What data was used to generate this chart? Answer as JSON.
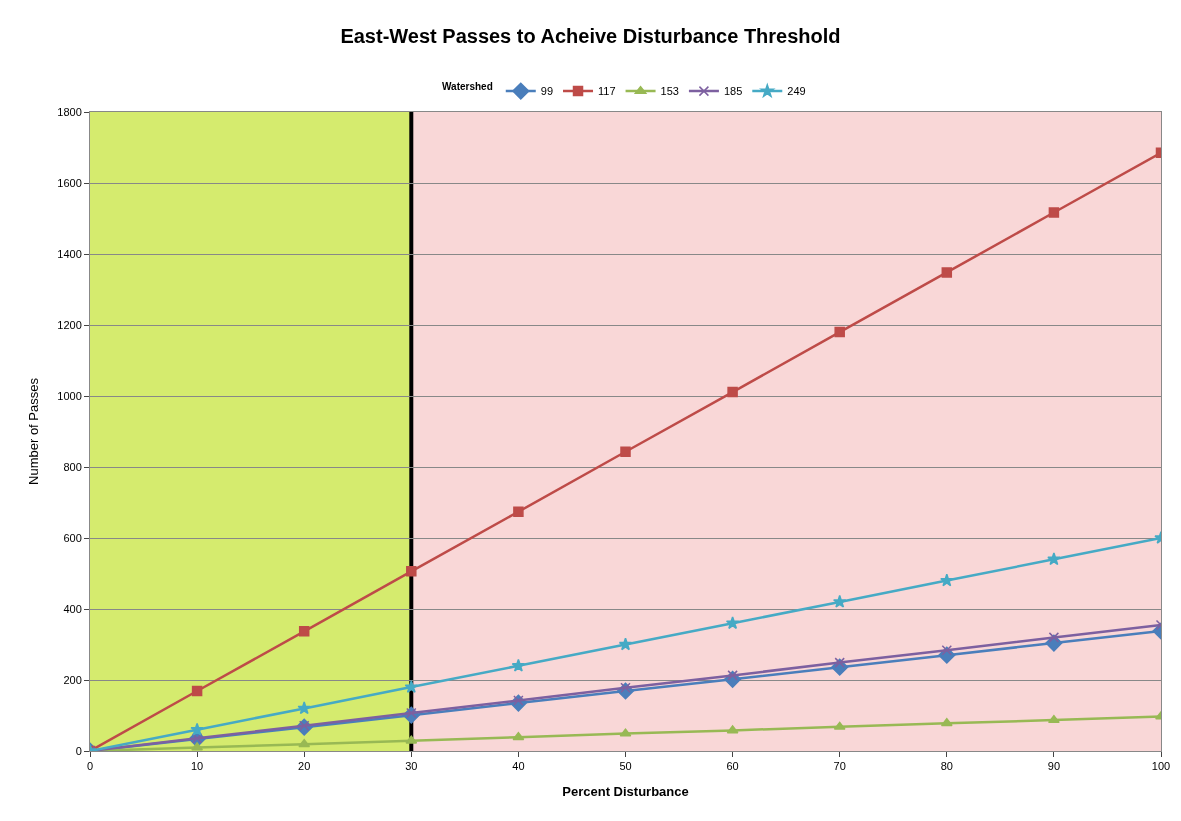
{
  "chart_data": {
    "type": "line",
    "title": "East-West Passes to Acheive Disturbance Threshold",
    "xlabel": "Percent Disturbance",
    "ylabel": "Number of Passes",
    "legend_title": "Watershed",
    "legend": "top",
    "x": [
      0,
      10,
      20,
      30,
      40,
      50,
      60,
      70,
      80,
      90,
      100
    ],
    "series": [
      {
        "name": "99",
        "color": "#4a7ebb",
        "marker": "diamond",
        "values": [
          0,
          34,
          67,
          101,
          135,
          169,
          202,
          236,
          270,
          304,
          338
        ]
      },
      {
        "name": "117",
        "color": "#be4b48",
        "marker": "square",
        "values": [
          0,
          169,
          337,
          506,
          674,
          843,
          1011,
          1180,
          1348,
          1517,
          1685
        ]
      },
      {
        "name": "153",
        "color": "#98b954",
        "marker": "triangle",
        "values": [
          0,
          10,
          19,
          29,
          39,
          49,
          58,
          68,
          78,
          87,
          97
        ]
      },
      {
        "name": "185",
        "color": "#7d60a0",
        "marker": "cross",
        "values": [
          0,
          36,
          71,
          107,
          142,
          178,
          213,
          249,
          284,
          320,
          355
        ]
      },
      {
        "name": "249",
        "color": "#46aac5",
        "marker": "star",
        "values": [
          0,
          60,
          120,
          180,
          240,
          300,
          360,
          420,
          480,
          540,
          600
        ]
      }
    ],
    "xlim": [
      0,
      100
    ],
    "xticks": [
      0,
      10,
      20,
      30,
      40,
      50,
      60,
      70,
      80,
      90,
      100
    ],
    "ylim": [
      0,
      1800
    ],
    "yticks": [
      0,
      200,
      400,
      600,
      800,
      1000,
      1200,
      1400,
      1600,
      1800
    ],
    "grid": "y",
    "line_style": "solid",
    "bands": [
      {
        "axis": "x",
        "from": 0,
        "to": 30,
        "color": "#d5eb6e"
      },
      {
        "axis": "x",
        "from": 30,
        "to": 100,
        "color": "#f9d7d7"
      }
    ],
    "ref_lines": [
      {
        "axis": "x",
        "value": 30,
        "color": "#000000"
      }
    ]
  }
}
